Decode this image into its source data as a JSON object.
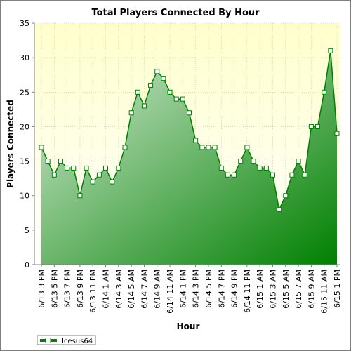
{
  "chart_data": {
    "type": "area",
    "title": "Total Players Connected By Hour",
    "xlabel": "Hour",
    "ylabel": "Players Connected",
    "ylim": [
      0,
      35
    ],
    "yticks": [
      0,
      5,
      10,
      15,
      20,
      25,
      30,
      35
    ],
    "grid": true,
    "legend_position": "bottom-left",
    "x_tick_labels": [
      "6/13 3 PM",
      "6/13 5 PM",
      "6/13 7 PM",
      "6/13 9 PM",
      "6/13 11 PM",
      "6/14 1 AM",
      "6/14 3 AM",
      "6/14 5 AM",
      "6/14 7 AM",
      "6/14 9 AM",
      "6/14 11 AM",
      "6/14 1 PM",
      "6/14 3 PM",
      "6/14 5 PM",
      "6/14 7 PM",
      "6/14 9 PM",
      "6/14 11 PM",
      "6/15 1 AM",
      "6/15 3 AM",
      "6/15 5 AM",
      "6/15 7 AM",
      "6/15 9 AM",
      "6/15 11 AM",
      "6/15 1 PM"
    ],
    "series": [
      {
        "name": "Icesus64",
        "color": "#008000",
        "values": [
          17,
          15,
          13,
          15,
          14,
          14,
          10,
          14,
          12,
          13,
          14,
          12,
          14,
          17,
          22,
          25,
          23,
          26,
          28,
          27,
          25,
          24,
          24,
          22,
          18,
          17,
          17,
          17,
          14,
          13,
          13,
          15,
          17,
          15,
          14,
          14,
          13,
          8,
          10,
          13,
          15,
          13,
          20,
          20,
          25,
          31,
          19
        ]
      }
    ]
  },
  "colors": {
    "plot_background_top": "#ffffcc",
    "plot_background_bottom": "#ffffff",
    "gridline": "#c8c8a0",
    "area_light": "#d8ecd8",
    "area_dark": "#008000"
  }
}
